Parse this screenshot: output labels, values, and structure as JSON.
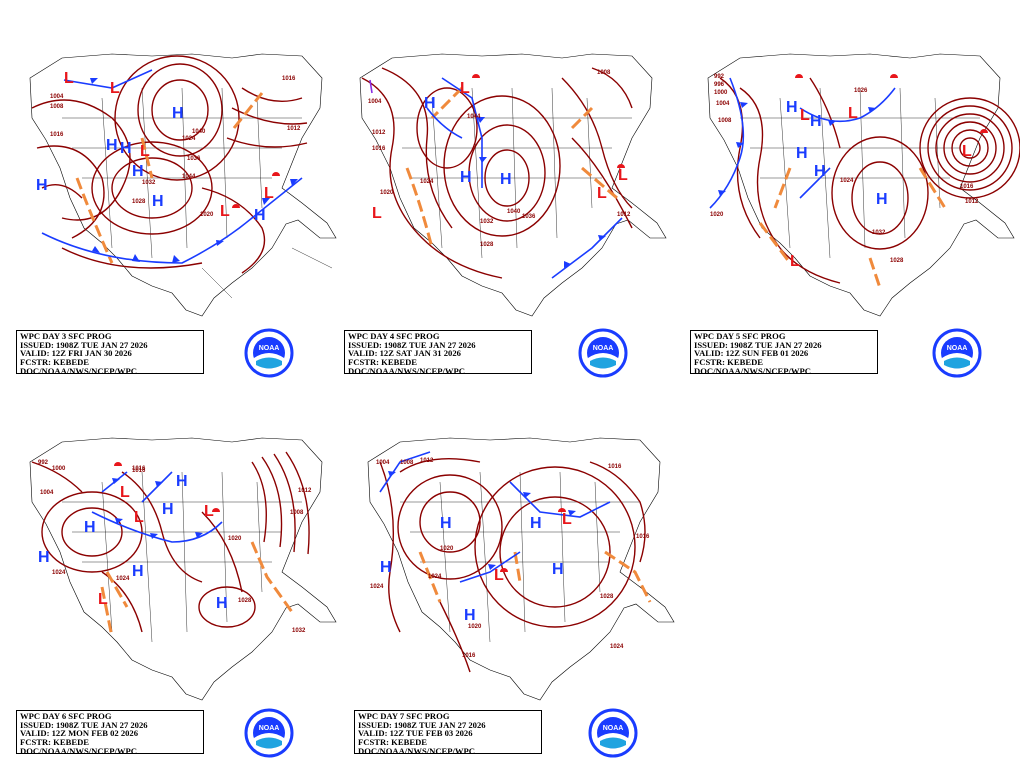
{
  "colors": {
    "isobar": "#8b0000",
    "high": "#1a3cff",
    "low": "#e8161b",
    "trough": "#f08a3c",
    "cold_front": "#1a3cff",
    "warm_front": "#e8161b",
    "occluded_front": "#8a2be2",
    "map_outline": "#000000"
  },
  "panels": [
    {
      "id": "day3",
      "caption": {
        "title": "WPC DAY 3 SFC PROG",
        "issued": "ISSUED: 1908Z TUE JAN 27 2026",
        "valid": "VALID: 12Z FRI JAN 30 2026",
        "forecaster": "FCSTR: KEBEDE",
        "agency": "DOC/NOAA/NWS/NCEP/WPC"
      },
      "logo_text": "NOAA",
      "iso_labels": [
        "1004",
        "1008",
        "1016",
        "1024",
        "1028",
        "1032",
        "1036",
        "1040",
        "1044",
        "1020",
        "1012",
        "1016"
      ]
    },
    {
      "id": "day4",
      "caption": {
        "title": "WPC DAY 4 SFC PROG",
        "issued": "ISSUED: 1908Z TUE JAN 27 2026",
        "valid": "VALID: 12Z SAT JAN 31 2026",
        "forecaster": "FCSTR: KEBEDE",
        "agency": "DOC/NOAA/NWS/NCEP/WPC"
      },
      "logo_text": "NOAA",
      "iso_labels": [
        "1004",
        "1012",
        "1016",
        "1020",
        "1024",
        "1028",
        "1032",
        "1036",
        "1040",
        "1044",
        "1012",
        "1008"
      ]
    },
    {
      "id": "day5",
      "caption": {
        "title": "WPC DAY 5 SFC PROG",
        "issued": "ISSUED: 1908Z TUE JAN 27 2026",
        "valid": "VALID: 12Z SUN FEB 01 2026",
        "forecaster": "FCSTR: KEBEDE",
        "agency": "DOC/NOAA/NWS/NCEP/WPC"
      },
      "logo_text": "NOAA",
      "iso_labels": [
        "992",
        "996",
        "1000",
        "1004",
        "1008",
        "1012",
        "1016",
        "1020",
        "1024",
        "1028",
        "1032",
        "1026"
      ]
    },
    {
      "id": "day6",
      "caption": {
        "title": "WPC DAY 6 SFC PROG",
        "issued": "ISSUED: 1908Z TUE JAN 27 2026",
        "valid": "VALID: 12Z MON FEB 02 2026",
        "forecaster": "FCSTR: KEBEDE",
        "agency": "DOC/NOAA/NWS/NCEP/WPC"
      },
      "logo_text": "NOAA",
      "iso_labels": [
        "992",
        "1000",
        "1004",
        "1008",
        "1016",
        "1020",
        "1024",
        "1028",
        "1032",
        "1016",
        "1012",
        "1024"
      ]
    },
    {
      "id": "day7",
      "caption": {
        "title": "WPC DAY 7 SFC PROG",
        "issued": "ISSUED: 1908Z TUE JAN 27 2026",
        "valid": "VALID: 12Z TUE FEB 03 2026",
        "forecaster": "FCSTR: KEBEDE",
        "agency": "DOC/NOAA/NWS/NCEP/WPC"
      },
      "logo_text": "NOAA",
      "iso_labels": [
        "1004",
        "1008",
        "1012",
        "1016",
        "1020",
        "1024",
        "1028",
        "1016",
        "1020",
        "1024",
        "1016",
        "1024"
      ]
    }
  ]
}
